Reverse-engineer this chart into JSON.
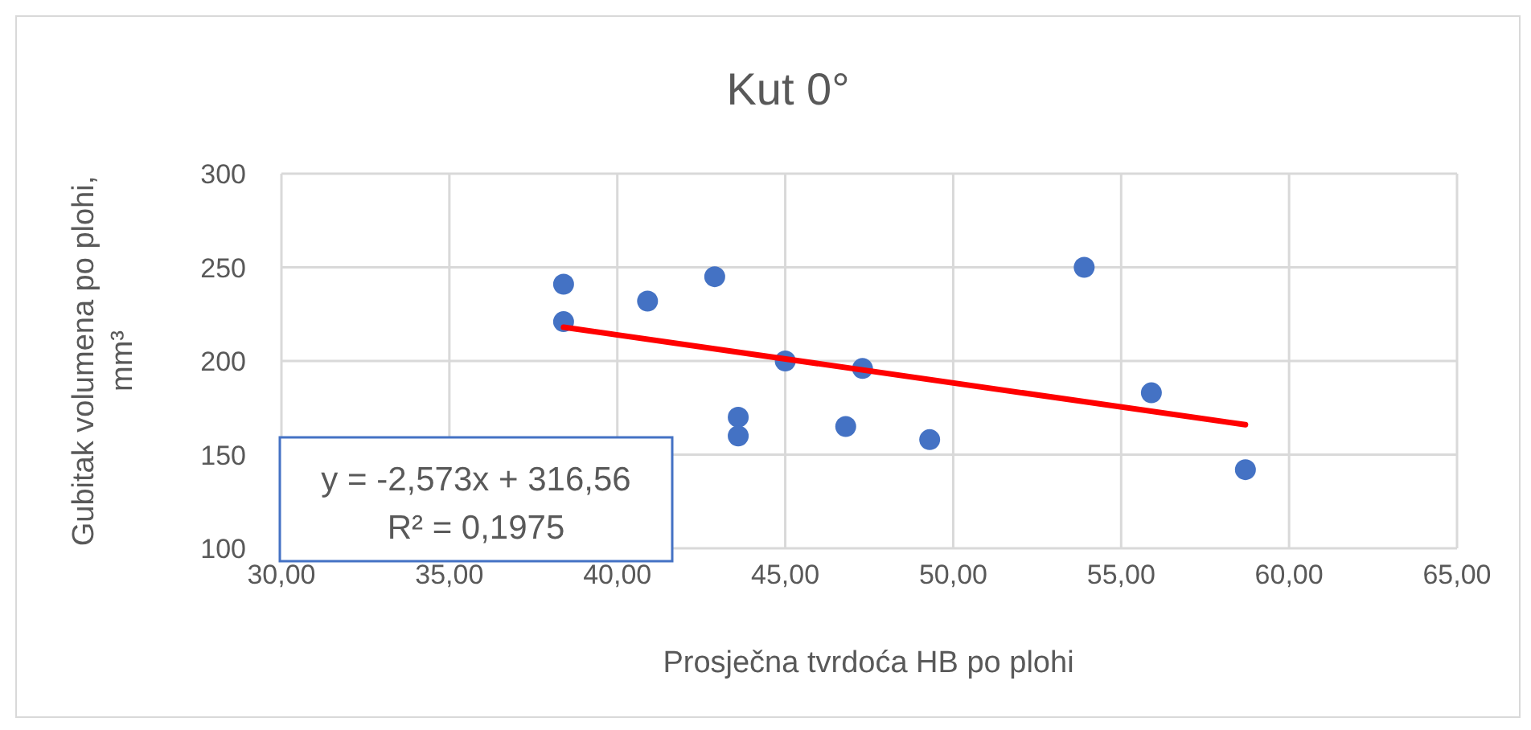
{
  "chart_data": {
    "type": "scatter",
    "title": "Kut 0°",
    "xlabel": "Prosječna tvrdoća HB po plohi",
    "ylabel": "Gubitak volumena po plohi, mm³",
    "xlim": [
      30,
      65
    ],
    "xticks": [
      {
        "value": 30,
        "label": "30,00"
      },
      {
        "value": 35,
        "label": "35,00"
      },
      {
        "value": 40,
        "label": "40,00"
      },
      {
        "value": 45,
        "label": "45,00"
      },
      {
        "value": 50,
        "label": "50,00"
      },
      {
        "value": 55,
        "label": "55,00"
      },
      {
        "value": 60,
        "label": "60,00"
      },
      {
        "value": 65,
        "label": "65,00"
      }
    ],
    "ylim": [
      100,
      300
    ],
    "yticks": [
      100,
      150,
      200,
      250,
      300
    ],
    "grid": true,
    "series": [
      {
        "marker": "circle",
        "color": "#4472c4",
        "x": [
          38.4,
          38.4,
          40.9,
          42.9,
          43.6,
          43.6,
          45.0,
          46.8,
          47.3,
          49.3,
          53.9,
          55.9,
          58.7
        ],
        "values": [
          241,
          221,
          232,
          245,
          170,
          160,
          200,
          165,
          196,
          158,
          250,
          183,
          142
        ]
      },
      {
        "type": "line",
        "color": "#ff0000",
        "x": [
          38.4,
          58.7
        ],
        "values": [
          218,
          166
        ],
        "marker": "none"
      }
    ],
    "annotations": [
      "y = -2,573x + 316,56",
      "R² = 0,1975"
    ]
  }
}
